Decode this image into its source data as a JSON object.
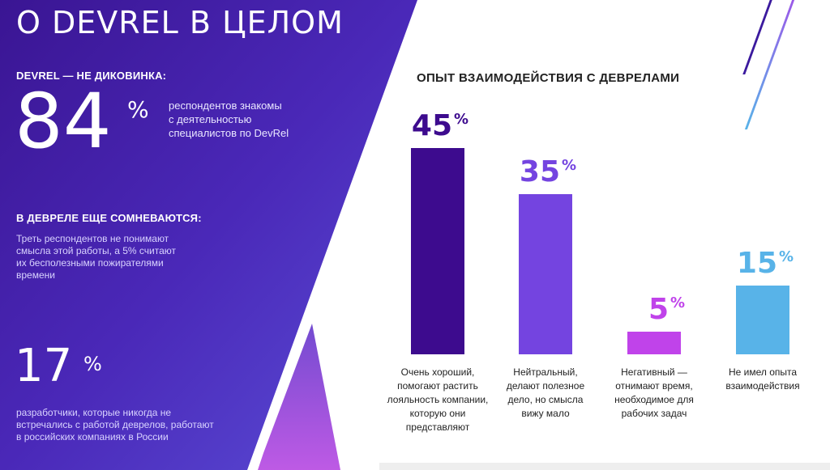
{
  "title": "О DEVREL В ЦЕЛОМ",
  "section1": {
    "heading": "DEVREL — НЕ ДИКОВИНКА:",
    "value": "84",
    "unit": "%",
    "description_lines": [
      "респондентов знакомы",
      "с деятельностью",
      "специалистов по DevRel"
    ]
  },
  "section2": {
    "heading": "В ДЕВРЕЛЕ ЕЩЕ СОМНЕВАЮТСЯ:",
    "description_lines": [
      "Треть респондентов не понимают",
      "смысла этой работы, а 5% считают",
      "их бесполезными пожирателями",
      "времени"
    ]
  },
  "section3": {
    "value": "17",
    "unit": "%",
    "description_lines": [
      "разработчики, которые никогда не",
      "встречались с работой деврелов, работают",
      "в российских компаниях в России"
    ]
  },
  "chart_data": {
    "type": "bar",
    "title": "ОПЫТ ВЗАИМОДЕЙСТВИЯ С ДЕВРЕЛАМИ",
    "categories": [
      [
        "Очень хороший,",
        "помогают растить",
        "лояльность компании,",
        "которую они",
        "представляют"
      ],
      [
        "Нейтральный,",
        "делают полезное",
        "дело, но смысла",
        "вижу мало"
      ],
      [
        "Негативный —",
        "отнимают время,",
        "необходимое для",
        "рабочих задач"
      ],
      [
        "Не имел опыта",
        "взаимодействия"
      ]
    ],
    "values": [
      45,
      35,
      5,
      15
    ],
    "value_labels": [
      "45",
      "35",
      "5",
      "15"
    ],
    "unit": "%",
    "ylim": [
      0,
      45
    ],
    "colors": [
      "#3d0b8e",
      "#7444e0",
      "#c043ea",
      "#58b3e8"
    ]
  }
}
